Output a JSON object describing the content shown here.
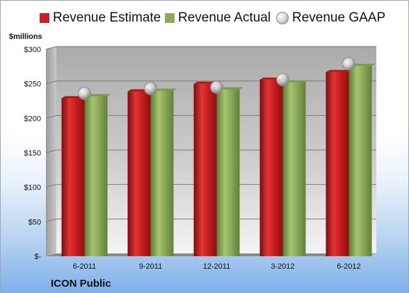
{
  "legend": {
    "estimate": "Revenue Estimate",
    "actual": "Revenue Actual",
    "gaap": "Revenue GAAP"
  },
  "units_label": "$millions",
  "company": "ICON Public",
  "colors": {
    "estimate": "#cc1f1f",
    "actual": "#8cab5a",
    "gaap": "#cfcfcf"
  },
  "chart_data": {
    "type": "bar",
    "categories": [
      "6-2011",
      "9-2011",
      "12-2011",
      "3-2012",
      "6-2012"
    ],
    "series": [
      {
        "name": "Revenue Estimate",
        "values": [
          229,
          239,
          250,
          256,
          267
        ]
      },
      {
        "name": "Revenue Actual",
        "values": [
          232,
          240,
          242,
          252,
          276
        ]
      },
      {
        "name": "Revenue GAAP",
        "type": "bubble",
        "values": [
          233,
          240,
          242,
          253,
          276
        ]
      }
    ],
    "ylabel": "$millions",
    "ylim": [
      0,
      300
    ],
    "yticks": [
      {
        "value": 0,
        "label": "$-"
      },
      {
        "value": 50,
        "label": "$50"
      },
      {
        "value": 100,
        "label": "$100"
      },
      {
        "value": 150,
        "label": "$150"
      },
      {
        "value": 200,
        "label": "$200"
      },
      {
        "value": 250,
        "label": "$250"
      },
      {
        "value": 300,
        "label": "$300"
      }
    ],
    "grid": true,
    "legend_position": "top"
  }
}
